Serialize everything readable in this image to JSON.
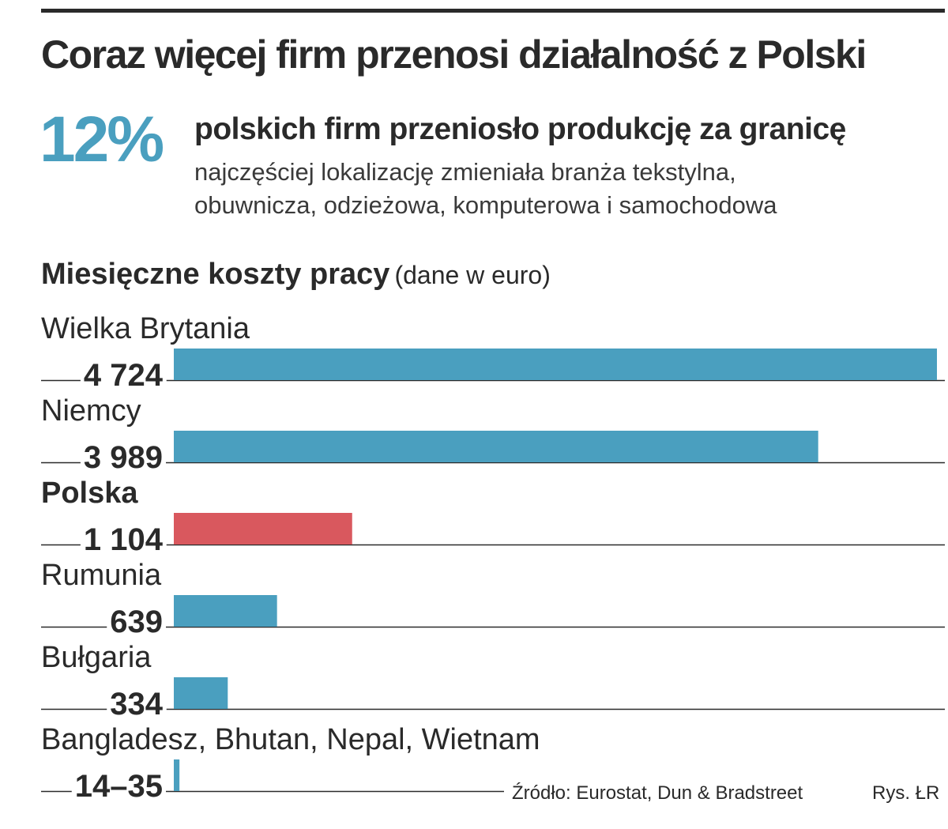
{
  "title": "Coraz więcej firm przenosi działalność z Polski",
  "highlight": {
    "value": "12%",
    "headline": "polskich firm przeniosło produkcję za granicę",
    "detail_line1": "najczęściej lokalizację zmieniała branża tekstylna,",
    "detail_line2": "obuwnicza, odzieżowa, komputerowa i samochodowa",
    "color": "#4a9fbf"
  },
  "chart_title": "Miesięczne koszty pracy",
  "chart_unit": "(dane w euro)",
  "source": "Źródło: Eurostat, Dun & Bradstreet",
  "credit": "Rys. ŁR",
  "chart_data": {
    "type": "bar",
    "orientation": "horizontal",
    "categories": [
      "Wielka Brytania",
      "Niemcy",
      "Polska",
      "Rumunia",
      "Bułgaria",
      "Bangladesz, Bhutan, Nepal, Wietnam"
    ],
    "values": [
      4724,
      3989,
      1104,
      639,
      334,
      35
    ],
    "value_labels": [
      "4 724",
      "3 989",
      "1 104",
      "639",
      "334",
      "14–35"
    ],
    "bold_category": "Polska",
    "xlim": [
      0,
      4724
    ],
    "colors": {
      "default": "#4a9fbf",
      "highlight": "#d9585e",
      "axis": "#2a2a2a"
    }
  }
}
